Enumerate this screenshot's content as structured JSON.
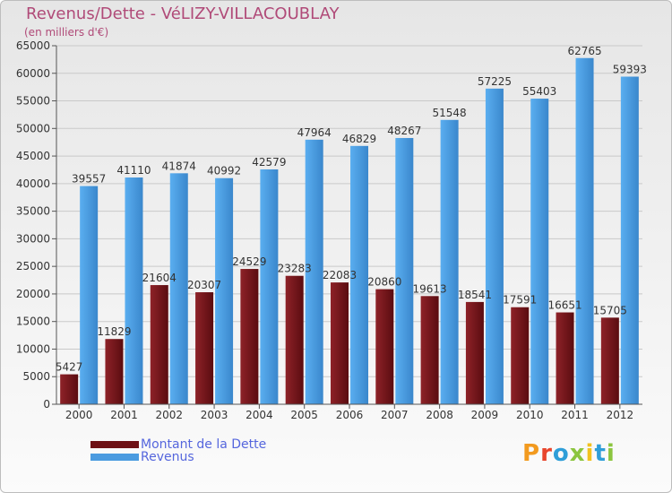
{
  "title": "Revenus/Dette - VéLIZY-VILLACOUBLAY",
  "subtitle": "(en milliers d'€)",
  "logo": "Proxiti",
  "colors": {
    "debt": "#6e1014",
    "debt_light": "#8e2228",
    "revenue": "#4a9be0",
    "revenue_light": "#5aaef0",
    "title": "#b04a78",
    "legend_text": "#5566dd"
  },
  "legend": [
    {
      "label": "Montant de la Dette",
      "color": "#6e1014"
    },
    {
      "label": "Revenus",
      "color": "#4a9be0"
    }
  ],
  "chart_data": {
    "type": "bar",
    "categories": [
      "2000",
      "2001",
      "2002",
      "2003",
      "2004",
      "2005",
      "2006",
      "2007",
      "2008",
      "2009",
      "2010",
      "2011",
      "2012"
    ],
    "series": [
      {
        "name": "Montant de la Dette",
        "values": [
          5427,
          11829,
          21604,
          20307,
          24529,
          23283,
          22083,
          20860,
          19613,
          18541,
          17591,
          16651,
          15705
        ],
        "labels": [
          "5427",
          "11829",
          "21604",
          "20307",
          "24529",
          "23283",
          "22083",
          "20860",
          "19613",
          "18541",
          "17591",
          "16651",
          "15705"
        ]
      },
      {
        "name": "Revenus",
        "values": [
          39557,
          41110,
          41874,
          40992,
          42579,
          47964,
          46829,
          48267,
          51548,
          57225,
          55403,
          62765,
          59393
        ],
        "labels": [
          "39557",
          "41110",
          "41874",
          "40992",
          "42579",
          "47964",
          "46829",
          "48267",
          "51548",
          "57225",
          "55403",
          "62765",
          "59393"
        ]
      }
    ],
    "ylim": [
      0,
      65000
    ],
    "yticks": [
      0,
      5000,
      10000,
      15000,
      20000,
      25000,
      30000,
      35000,
      40000,
      45000,
      50000,
      55000,
      60000,
      65000
    ],
    "grid": true,
    "legend_position": "bottom-left"
  }
}
